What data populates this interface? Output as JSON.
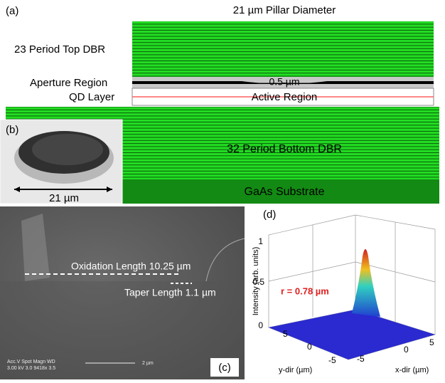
{
  "panels": {
    "a": {
      "label": "(a)",
      "title": "21 µm Pillar Diameter",
      "layers": [
        "23 Period Top DBR",
        "Aperture Region",
        "QD Layer"
      ],
      "aperture_width": "0.5 µm",
      "active_region": "Active Region",
      "bottom_dbr": "32 Period Bottom DBR",
      "substrate": "GaAs Substrate"
    },
    "b": {
      "label": "(b)",
      "diameter": "21 µm"
    },
    "c": {
      "label": "(c)",
      "oxidation": "Oxidation Length 10.25 µm",
      "taper": "Taper Length 1.1 µm",
      "info_header": "Acc.V  Spot Magn   WD",
      "info_values": "3.00 kV 3.0  9418x  3.5",
      "scale_bar": "2 µm"
    },
    "d": {
      "label": "(d)",
      "z_label": "Intensity (arb. units)",
      "z_ticks": [
        "1",
        "0.5",
        "0"
      ],
      "radius": "r = 0.78 µm",
      "y_ticks": [
        "5",
        "0",
        "-5"
      ],
      "x_ticks": [
        "-5",
        "0",
        "5"
      ],
      "y_label": "y-dir (µm)",
      "x_label": "x-dir (µm)"
    }
  }
}
